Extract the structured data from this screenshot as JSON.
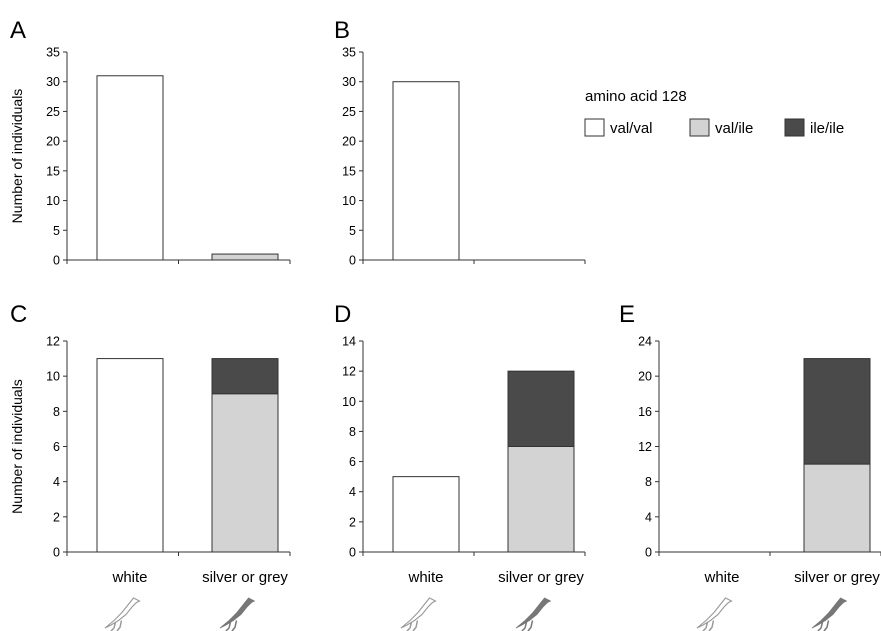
{
  "legend": {
    "title": "amino acid 128",
    "items": [
      {
        "label": "val/val",
        "color": "#ffffff"
      },
      {
        "label": "val/ile",
        "color": "#d3d3d3"
      },
      {
        "label": "ile/ile",
        "color": "#4a4a4a"
      }
    ]
  },
  "ylabel": "Number of individuals",
  "categories": [
    "white",
    "silver or grey"
  ],
  "icons": [
    "white-bird-icon",
    "grey-bird-icon"
  ],
  "chart_data": [
    {
      "panel": "A",
      "type": "bar",
      "categories": [
        "",
        ""
      ],
      "ylim": [
        0,
        35
      ],
      "yticks": [
        0,
        5,
        10,
        15,
        20,
        25,
        30,
        35
      ],
      "ylabel": "Number of individuals",
      "series": [
        {
          "name": "val/val",
          "values": [
            31,
            0
          ]
        },
        {
          "name": "val/ile",
          "values": [
            0,
            1
          ]
        },
        {
          "name": "ile/ile",
          "values": [
            0,
            0
          ]
        }
      ]
    },
    {
      "panel": "B",
      "type": "bar",
      "categories": [
        "",
        ""
      ],
      "ylim": [
        0,
        35
      ],
      "yticks": [
        0,
        5,
        10,
        15,
        20,
        25,
        30,
        35
      ],
      "ylabel": "",
      "series": [
        {
          "name": "val/val",
          "values": [
            30,
            0
          ]
        },
        {
          "name": "val/ile",
          "values": [
            0,
            0
          ]
        },
        {
          "name": "ile/ile",
          "values": [
            0,
            0
          ]
        }
      ]
    },
    {
      "panel": "C",
      "type": "bar",
      "categories": [
        "white",
        "silver or grey"
      ],
      "ylim": [
        0,
        12
      ],
      "yticks": [
        0,
        2,
        4,
        6,
        8,
        10,
        12
      ],
      "ylabel": "Number of individuals",
      "series": [
        {
          "name": "val/val",
          "values": [
            11,
            0
          ]
        },
        {
          "name": "val/ile",
          "values": [
            0,
            9
          ]
        },
        {
          "name": "ile/ile",
          "values": [
            0,
            2
          ]
        }
      ]
    },
    {
      "panel": "D",
      "type": "bar",
      "categories": [
        "white",
        "silver or grey"
      ],
      "ylim": [
        0,
        14
      ],
      "yticks": [
        0,
        2,
        4,
        6,
        8,
        10,
        12,
        14
      ],
      "ylabel": "",
      "series": [
        {
          "name": "val/val",
          "values": [
            5,
            0
          ]
        },
        {
          "name": "val/ile",
          "values": [
            0,
            7
          ]
        },
        {
          "name": "ile/ile",
          "values": [
            0,
            5
          ]
        }
      ]
    },
    {
      "panel": "E",
      "type": "bar",
      "categories": [
        "white",
        "silver or grey"
      ],
      "ylim": [
        0,
        24
      ],
      "yticks": [
        0,
        4,
        8,
        12,
        16,
        20,
        24
      ],
      "ylabel": "",
      "series": [
        {
          "name": "val/val",
          "values": [
            0,
            0
          ]
        },
        {
          "name": "val/ile",
          "values": [
            0,
            10
          ]
        },
        {
          "name": "ile/ile",
          "values": [
            0,
            12
          ]
        }
      ]
    }
  ]
}
